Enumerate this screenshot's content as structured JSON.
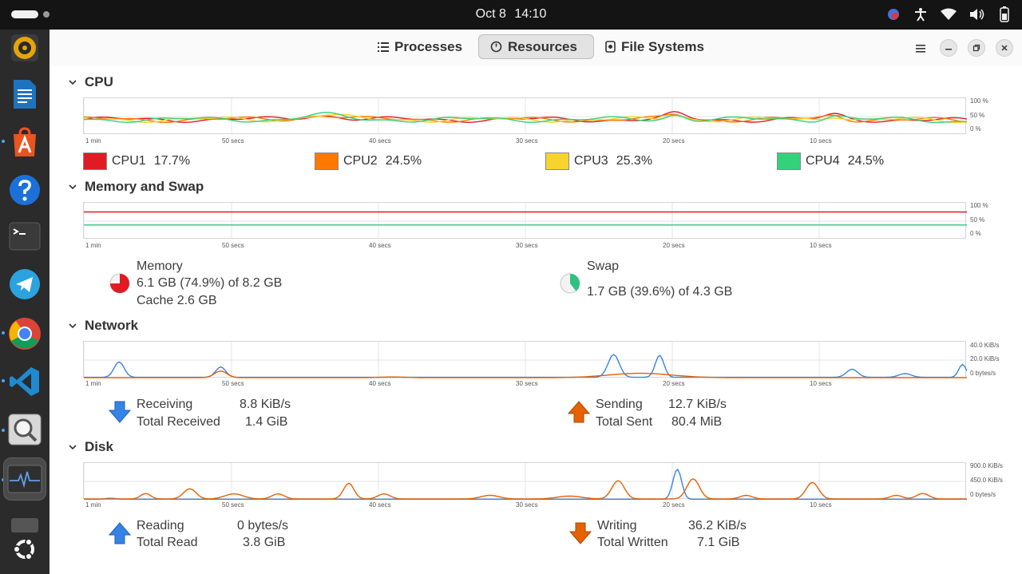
{
  "topbar": {
    "date": "Oct 8",
    "time": "14:10"
  },
  "dock": {
    "apps": [
      {
        "name": "Rhythmbox"
      },
      {
        "name": "LibreOffice Writer"
      },
      {
        "name": "App Center"
      },
      {
        "name": "Help"
      },
      {
        "name": "Terminal"
      },
      {
        "name": "Telegram"
      },
      {
        "name": "Google Chrome"
      },
      {
        "name": "Visual Studio Code"
      },
      {
        "name": "Image Viewer"
      },
      {
        "name": "System Monitor"
      },
      {
        "name": "Show Apps"
      }
    ]
  },
  "tabs": [
    {
      "label": "Processes",
      "active": false
    },
    {
      "label": "Resources",
      "active": true
    },
    {
      "label": "File Systems",
      "active": false
    }
  ],
  "x_ticks": [
    "1 min",
    "50 secs",
    "40 secs",
    "30 secs",
    "20 secs",
    "10 secs"
  ],
  "cpu": {
    "title": "CPU",
    "y_ticks": [
      "100 %",
      "50 %",
      "0 %"
    ],
    "cores": [
      {
        "label": "CPU1",
        "value": "17.7%",
        "color": "#e01b24"
      },
      {
        "label": "CPU2",
        "value": "24.5%",
        "color": "#ff7800"
      },
      {
        "label": "CPU3",
        "value": "25.3%",
        "color": "#f6d32d"
      },
      {
        "label": "CPU4",
        "value": "24.5%",
        "color": "#33d17a"
      }
    ]
  },
  "memory": {
    "title": "Memory and Swap",
    "y_ticks": [
      "100 %",
      "50 %",
      "0 %"
    ],
    "mem": {
      "label": "Memory",
      "usage": "6.1 GB (74.9%) of 8.2 GB",
      "cache": "Cache 2.6 GB",
      "fraction": 0.749,
      "color": "#e01b24"
    },
    "swap": {
      "label": "Swap",
      "usage": "1.7 GB (39.6%) of 4.3 GB",
      "fraction": 0.396,
      "color": "#2ec27e"
    }
  },
  "network": {
    "title": "Network",
    "y_ticks": [
      "40.0 KiB/s",
      "20.0 KiB/s",
      "0 bytes/s"
    ],
    "receiving": {
      "label": "Receiving",
      "value": "8.8 KiB/s",
      "total_label": "Total Received",
      "total": "1.4 GiB",
      "color": "#3584e4"
    },
    "sending": {
      "label": "Sending",
      "value": "12.7 KiB/s",
      "total_label": "Total Sent",
      "total": "80.4 MiB",
      "color": "#e66100"
    }
  },
  "disk": {
    "title": "Disk",
    "y_ticks": [
      "900.0 KiB/s",
      "450.0 KiB/s",
      "0 bytes/s"
    ],
    "reading": {
      "label": "Reading",
      "value": "0 bytes/s",
      "total_label": "Total Read",
      "total": "3.8 GiB",
      "color": "#3584e4"
    },
    "writing": {
      "label": "Writing",
      "value": "36.2 KiB/s",
      "total_label": "Total Written",
      "total": "7.1 GiB",
      "color": "#e66100"
    }
  }
}
